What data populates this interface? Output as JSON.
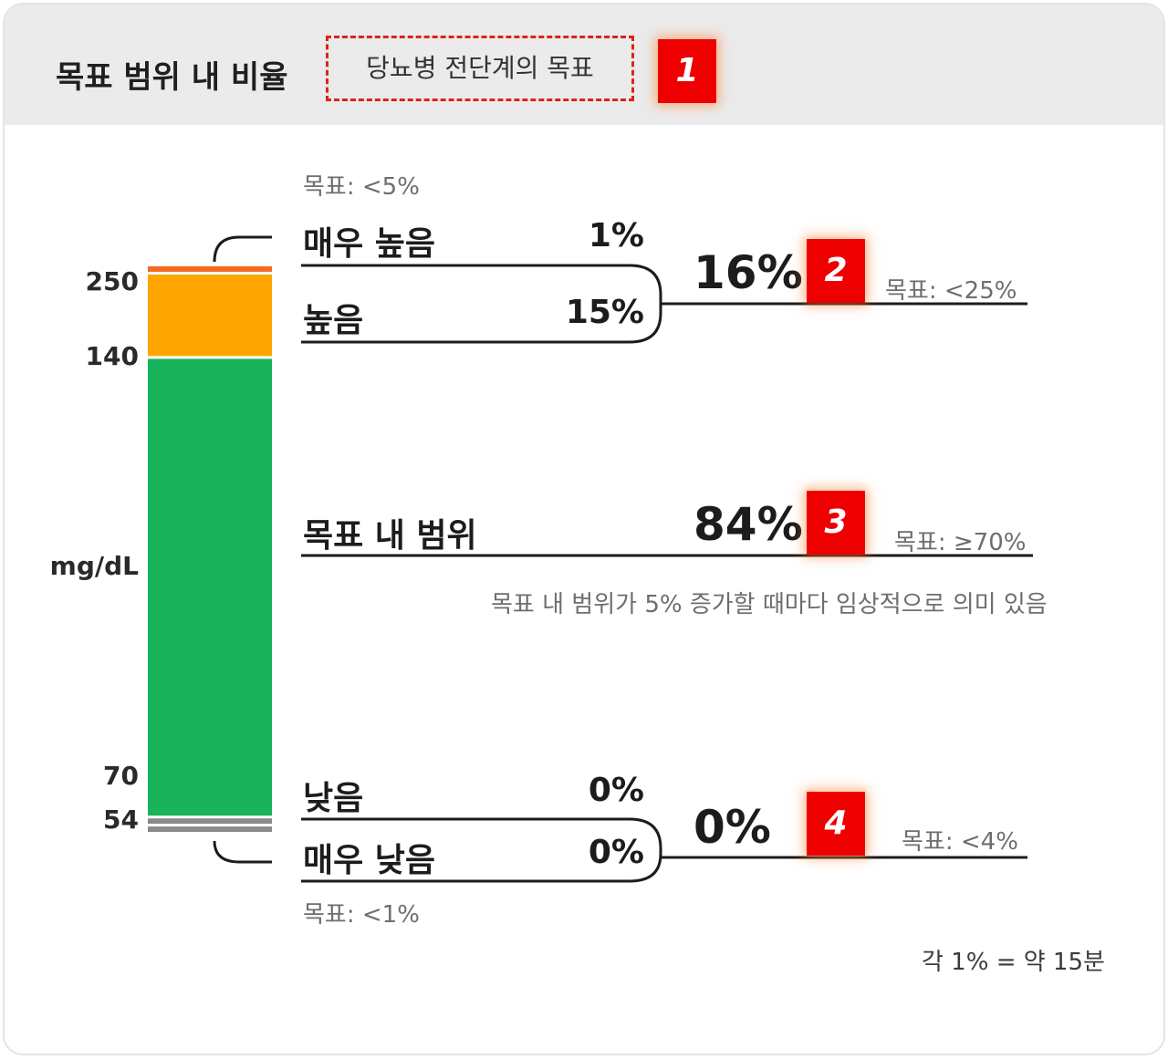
{
  "header": {
    "title": "목표 범위 내 비율",
    "subtitle": "당뇨병 전단계의 목표",
    "badges": [
      "1",
      "2",
      "3",
      "4"
    ]
  },
  "chart_data": {
    "type": "stacked-bar",
    "unit_label": "mg/dL",
    "thresholds": [
      "250",
      "140",
      "70",
      "54"
    ],
    "categories": [
      {
        "name": "매우 높음",
        "value": 1,
        "label": "1%",
        "color": "#f26b21"
      },
      {
        "name": "높음",
        "value": 15,
        "label": "15%",
        "color": "#fea500"
      },
      {
        "name": "목표 내 범위",
        "value": 84,
        "label": "84%",
        "color": "#18b35b"
      },
      {
        "name": "낮음",
        "value": 0,
        "label": "0%",
        "color": "#8a8a8a"
      },
      {
        "name": "매우 낮음",
        "value": 0,
        "label": "0%",
        "color": "#8a8a8a"
      }
    ],
    "groups": {
      "high": {
        "total": "16%",
        "goal": "목표: <25%",
        "sub_goal": "목표: <5%"
      },
      "in_range": {
        "total": "84%",
        "goal": "목표: ≥70%",
        "note": "목표 내 범위가 5% 증가할 때마다 임상적으로 의미 있음"
      },
      "low": {
        "total": "0%",
        "goal": "목표: <4%",
        "sub_goal": "목표: <1%"
      }
    },
    "footnote": "각 1% = 약 15분"
  }
}
